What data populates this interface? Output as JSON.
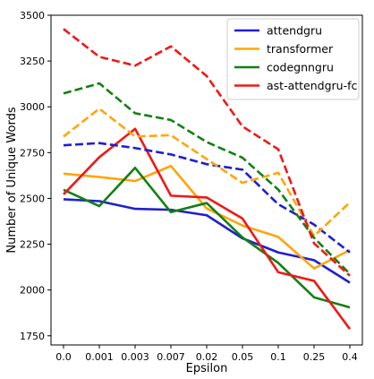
{
  "chart_data": {
    "type": "line",
    "xlabel": "Epsilon",
    "ylabel": "Number of Unique Words",
    "categories": [
      "0.0",
      "0.001",
      "0.003",
      "0.007",
      "0.02",
      "0.05",
      "0.1",
      "0.25",
      "0.4"
    ],
    "ylim": [
      1700,
      3500
    ],
    "yticks": [
      1750,
      2000,
      2250,
      2500,
      2750,
      3000,
      3250,
      3500
    ],
    "grid": false,
    "legend": {
      "placement": "top-right",
      "entries": [
        "attendgru",
        "transformer",
        "codegnngru",
        "ast-attendgru-fc"
      ]
    },
    "series": [
      {
        "name": "attendgru",
        "color": "#1f1fd1",
        "style": "solid",
        "values": [
          2495,
          2485,
          2443,
          2438,
          2408,
          2282,
          2205,
          2163,
          2040
        ]
      },
      {
        "name": "transformer",
        "color": "#ffa50a",
        "style": "solid",
        "values": [
          2635,
          2617,
          2595,
          2677,
          2445,
          2352,
          2290,
          2118,
          2218
        ]
      },
      {
        "name": "codegnngru",
        "color": "#138013",
        "style": "solid",
        "values": [
          2547,
          2458,
          2667,
          2425,
          2475,
          2287,
          2148,
          1960,
          1905
        ]
      },
      {
        "name": "ast-attendgru-fc",
        "color": "#f01818",
        "style": "solid",
        "values": [
          2522,
          2725,
          2880,
          2515,
          2505,
          2390,
          2097,
          2050,
          1787
        ]
      },
      {
        "color": "#1f1fd1",
        "style": "dashed",
        "values": [
          2790,
          2802,
          2775,
          2740,
          2687,
          2657,
          2468,
          2357,
          2205
        ]
      },
      {
        "color": "#ffa50a",
        "style": "dashed",
        "values": [
          2838,
          2990,
          2838,
          2845,
          2715,
          2585,
          2640,
          2295,
          2478
        ]
      },
      {
        "color": "#138013",
        "style": "dashed",
        "values": [
          3073,
          3128,
          2965,
          2928,
          2808,
          2722,
          2548,
          2285,
          2088
        ]
      },
      {
        "color": "#f01818",
        "style": "dashed",
        "values": [
          3425,
          3273,
          3225,
          3330,
          3168,
          2893,
          2768,
          2255,
          2078
        ]
      }
    ]
  }
}
